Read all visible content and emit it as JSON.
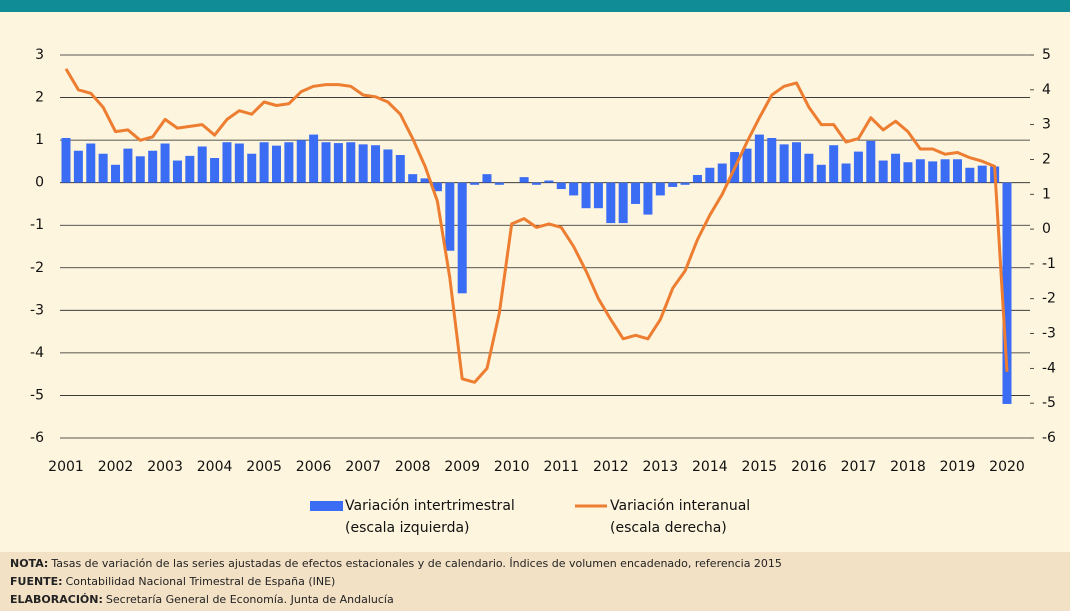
{
  "chart_data": {
    "type": "bar_line",
    "categories": [
      "2001",
      null,
      null,
      null,
      "2002",
      null,
      null,
      null,
      "2003",
      null,
      null,
      null,
      "2004",
      null,
      null,
      null,
      "2005",
      null,
      null,
      null,
      "2006",
      null,
      null,
      null,
      "2007",
      null,
      null,
      null,
      "2008",
      null,
      null,
      null,
      "2009",
      null,
      null,
      null,
      "2010",
      null,
      null,
      null,
      "2011",
      null,
      null,
      null,
      "2012",
      null,
      null,
      null,
      "2013",
      null,
      null,
      null,
      "2014",
      null,
      null,
      null,
      "2015",
      null,
      null,
      null,
      "2016",
      null,
      null,
      null,
      "2017",
      null,
      null,
      null,
      "2018",
      null,
      null,
      null,
      "2019",
      null,
      null,
      null,
      "2020"
    ],
    "series": [
      {
        "name": "Variación intertrimestral",
        "axis_note": "(escala izquierda)",
        "color": "#3b6cf4",
        "kind": "bar",
        "values": [
          1.05,
          0.75,
          0.92,
          0.68,
          0.42,
          0.8,
          0.62,
          0.75,
          0.92,
          0.52,
          0.63,
          0.85,
          0.58,
          0.95,
          0.92,
          0.68,
          0.95,
          0.87,
          0.95,
          1.0,
          1.13,
          0.95,
          0.93,
          0.95,
          0.9,
          0.88,
          0.78,
          0.65,
          0.2,
          0.1,
          -0.2,
          -1.6,
          -2.6,
          -0.05,
          0.2,
          -0.05,
          0.0,
          0.13,
          -0.05,
          0.05,
          -0.15,
          -0.3,
          -0.6,
          -0.6,
          -0.95,
          -0.95,
          -0.5,
          -0.75,
          -0.3,
          -0.1,
          -0.05,
          0.18,
          0.35,
          0.45,
          0.72,
          0.8,
          1.13,
          1.05,
          0.9,
          0.95,
          0.68,
          0.42,
          0.88,
          0.45,
          0.73,
          0.98,
          0.52,
          0.68,
          0.48,
          0.55,
          0.5,
          0.55,
          0.55,
          0.35,
          0.4,
          0.38,
          -5.2
        ]
      },
      {
        "name": "Variación interanual",
        "axis_note": "(escala derecha)",
        "color": "#ed7d31",
        "kind": "line",
        "axis": "y2",
        "values": [
          4.6,
          4.0,
          3.9,
          3.5,
          2.8,
          2.85,
          2.55,
          2.65,
          3.15,
          2.9,
          2.95,
          3.0,
          2.7,
          3.15,
          3.4,
          3.3,
          3.65,
          3.55,
          3.6,
          3.95,
          4.1,
          4.15,
          4.15,
          4.1,
          3.85,
          3.8,
          3.65,
          3.3,
          2.6,
          1.8,
          0.8,
          -1.4,
          -4.3,
          -4.4,
          -4.0,
          -2.4,
          0.15,
          0.3,
          0.05,
          0.15,
          0.05,
          -0.5,
          -1.2,
          -2.0,
          -2.6,
          -3.15,
          -3.05,
          -3.15,
          -2.6,
          -1.7,
          -1.2,
          -0.3,
          0.4,
          1.0,
          1.75,
          2.5,
          3.2,
          3.85,
          4.1,
          4.2,
          3.5,
          3.0,
          3.0,
          2.5,
          2.6,
          3.2,
          2.85,
          3.1,
          2.8,
          2.3,
          2.3,
          2.15,
          2.2,
          2.05,
          1.95,
          1.8,
          -4.1
        ]
      }
    ],
    "ylim": [
      -6,
      3
    ],
    "yticks": [
      -6,
      -5,
      -4,
      -3,
      -2,
      -1,
      0,
      1,
      2,
      3
    ],
    "y2lim": [
      -6,
      5
    ],
    "y2ticks": [
      -6,
      -5,
      -4,
      -3,
      -2,
      -1,
      0,
      1,
      2,
      3,
      4,
      5
    ],
    "grid": true,
    "notes": [
      {
        "label": "NOTA:",
        "text": "Tasas de variación de las series ajustadas de efectos estacionales y de calendario. Índices de volumen encadenado, referencia 2015"
      },
      {
        "label": "FUENTE:",
        "text": "Contabilidad Nacional Trimestral de España (INE)"
      },
      {
        "label": "ELABORACIÓN:",
        "text": "Secretaría General de Economía. Junta de Andalucía"
      }
    ]
  }
}
